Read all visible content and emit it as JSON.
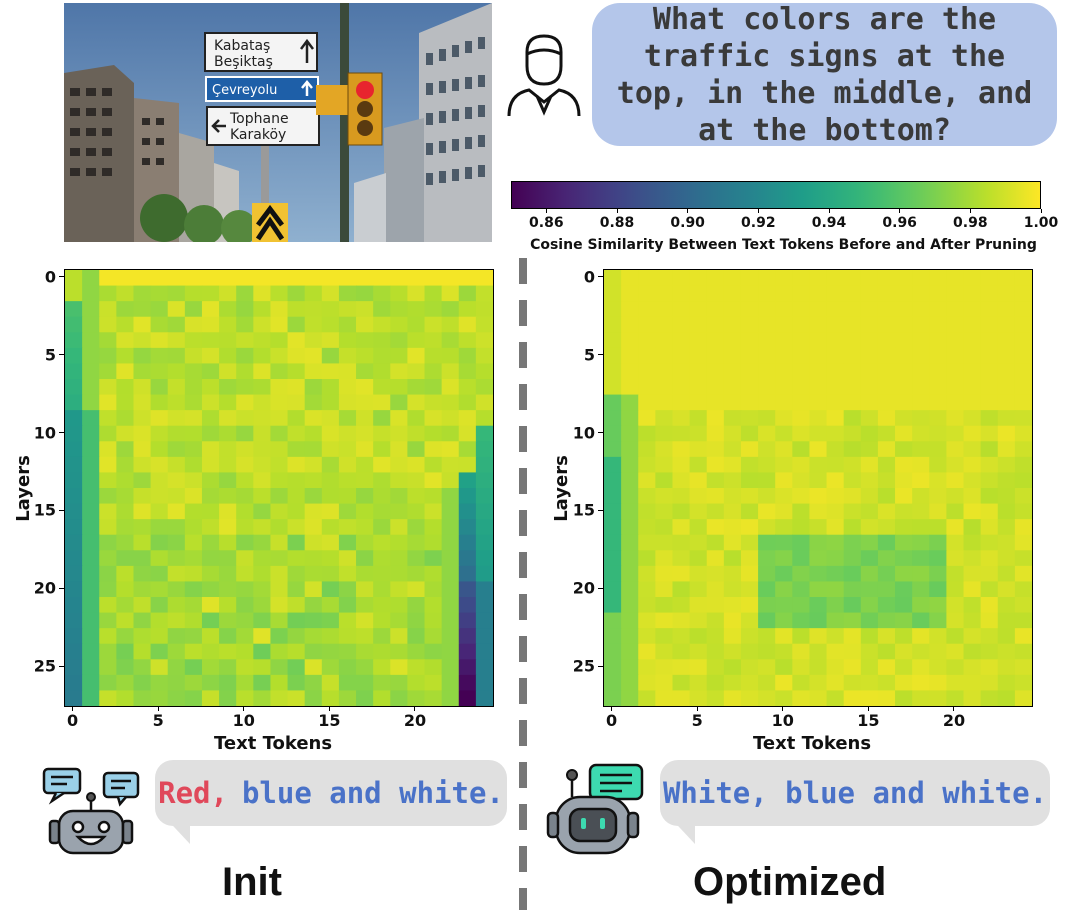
{
  "question": "What colors are the traffic signs at the top, in the middle, and at the bottom?",
  "photo": {
    "signs": [
      "Kabataş",
      "Beşiktaş",
      "Çevreyolu",
      "Tophane",
      "Karaköy"
    ]
  },
  "colorbar": {
    "ticks": [
      "0.86",
      "0.88",
      "0.90",
      "0.92",
      "0.94",
      "0.96",
      "0.98",
      "1.00"
    ],
    "min": 0.85,
    "max": 1.0,
    "title": "Cosine Similarity Between Text Tokens Before and After Pruning",
    "colormap": "viridis"
  },
  "chart_data": [
    {
      "type": "heatmap",
      "title": "",
      "xlabel": "Text Tokens",
      "ylabel": "Layers",
      "x_ticks": [
        "0",
        "5",
        "10",
        "15",
        "20"
      ],
      "y_ticks": [
        "0",
        "5",
        "10",
        "15",
        "20",
        "25"
      ],
      "rows": 28,
      "cols": 25,
      "vmin": 0.85,
      "vmax": 1.0,
      "notes": "Init: column 0 drops to ~0.93 from layer 9 onward; column 23 drops to ~0.86 at deep layers"
    },
    {
      "type": "heatmap",
      "title": "",
      "xlabel": "Text Tokens",
      "ylabel": "Layers",
      "x_ticks": [
        "0",
        "5",
        "10",
        "15",
        "20"
      ],
      "y_ticks": [
        "0",
        "5",
        "10",
        "15",
        "20",
        "25"
      ],
      "rows": 28,
      "cols": 25,
      "vmin": 0.85,
      "vmax": 1.0,
      "notes": "Optimized: mostly ~0.99; column 0 ~0.95 at mid layers"
    }
  ],
  "answers": {
    "init": {
      "red_part": "Red,",
      "blue_part": "blue and white."
    },
    "optimized": {
      "text": "White, blue and white."
    }
  },
  "labels": {
    "init": "Init",
    "optimized": "Optimized"
  },
  "colors": {
    "question_bg": "#b4c6ea",
    "answer_bg": "#e0e0e0",
    "red_text": "#e0485a",
    "blue_text": "#4a72c8"
  }
}
